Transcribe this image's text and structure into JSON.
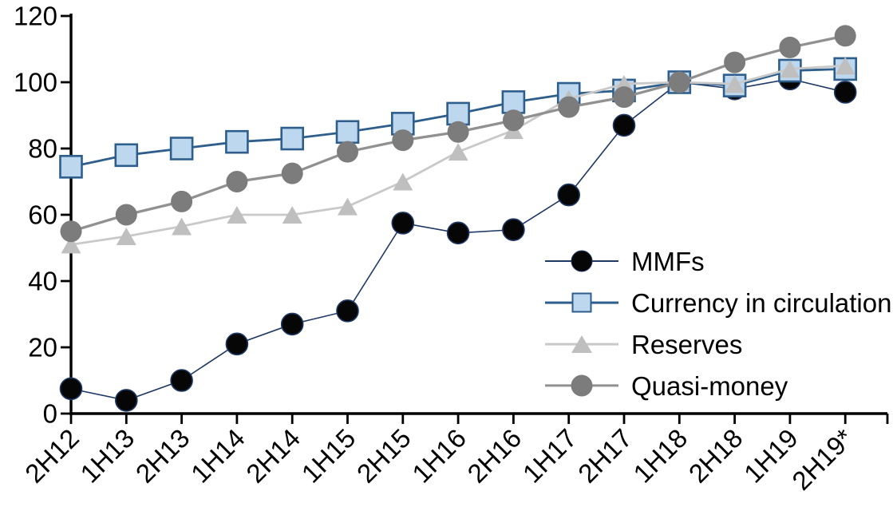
{
  "chart_data": {
    "type": "line",
    "title": "",
    "xlabel": "",
    "ylabel": "",
    "ylim": [
      0,
      120
    ],
    "yticks": [
      0,
      20,
      40,
      60,
      80,
      100,
      120
    ],
    "grid": false,
    "legend_position": "inside-right",
    "axis_color": "#000000",
    "tick_label_color": "#000000",
    "categories": [
      "2H12",
      "1H13",
      "2H13",
      "1H14",
      "2H14",
      "1H15",
      "2H15",
      "1H16",
      "2H16",
      "1H17",
      "2H17",
      "1H18",
      "2H18",
      "1H19",
      "2H19*"
    ],
    "series": [
      {
        "name": "MMFs",
        "marker": "circle",
        "marker_fill": "#060606",
        "marker_stroke": "#1F3864",
        "marker_stroke_width": 1.6,
        "line_color": "#1F3864",
        "line_width": 1.6,
        "values": [
          7.5,
          4,
          10,
          21,
          27,
          31,
          57.5,
          54.5,
          55.5,
          66,
          87,
          100,
          98,
          101,
          97
        ]
      },
      {
        "name": "Currency in circulation",
        "marker": "square",
        "marker_fill": "#BDD7EE",
        "marker_stroke": "#2E5E8C",
        "marker_stroke_width": 2.6,
        "line_color": "#2E5E8C",
        "line_width": 2.8,
        "values": [
          74.5,
          78,
          80,
          82,
          83,
          85,
          87.5,
          90.5,
          94,
          96.5,
          97.5,
          100,
          99,
          103.5,
          104
        ]
      },
      {
        "name": "Reserves",
        "marker": "triangle",
        "marker_fill": "#BFBFBF",
        "marker_stroke": "none",
        "marker_stroke_width": 0,
        "line_color": "#C9C9C9",
        "line_width": 2.8,
        "values": [
          51,
          53.5,
          56.5,
          60,
          60,
          62.5,
          70,
          79,
          85.5,
          95,
          99.5,
          100,
          99.5,
          104,
          105
        ]
      },
      {
        "name": "Quasi-money",
        "marker": "circle",
        "marker_fill": "#7C7C7C",
        "marker_stroke": "none",
        "marker_stroke_width": 0,
        "line_color": "#919191",
        "line_width": 3.3,
        "values": [
          55,
          60,
          64,
          70,
          72.5,
          79,
          82.5,
          85,
          88.5,
          92.5,
          95.5,
          100,
          106,
          110.5,
          114
        ]
      }
    ]
  }
}
